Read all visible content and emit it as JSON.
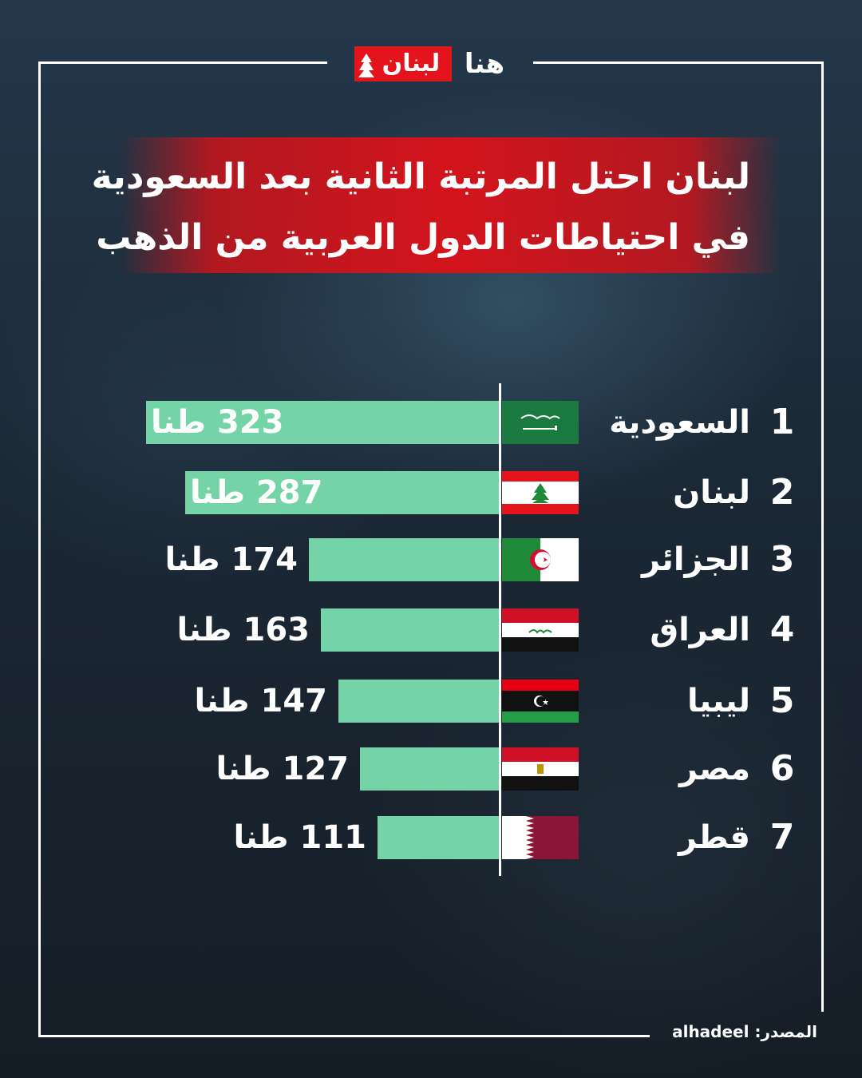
{
  "brand": {
    "logo_red_text": "لبنان",
    "logo_white_text": "هنا",
    "brand_red": "#e3141c"
  },
  "title": {
    "line1": "لبنان احتل المرتبة الثانية بعد السعودية",
    "line2": "في احتياطات الدول العربية من الذهب"
  },
  "colors": {
    "bar": "#74d4a8",
    "title_band": "#d3141c"
  },
  "chart_data": {
    "type": "bar",
    "orientation": "horizontal",
    "title": "لبنان احتل المرتبة الثانية بعد السعودية في احتياطات الدول العربية من الذهب",
    "categories": [
      "السعودية",
      "لبنان",
      "الجزائر",
      "العراق",
      "ليبيا",
      "مصر",
      "قطر"
    ],
    "ranks": [
      "1",
      "2",
      "3",
      "4",
      "5",
      "6",
      "7"
    ],
    "values": [
      323,
      287,
      174,
      163,
      147,
      127,
      111
    ],
    "value_labels": [
      "323 طنا",
      "287 طنا",
      "174 طنا",
      "163 طنا",
      "147 طنا",
      "127 طنا",
      "111 طنا"
    ],
    "unit": "طنا",
    "flags": [
      "saudi-arabia-flag",
      "lebanon-flag",
      "algeria-flag",
      "iraq-flag",
      "libya-flag",
      "egypt-flag",
      "qatar-flag"
    ],
    "xlim": [
      0,
      323
    ],
    "grid": false,
    "legend": "none"
  },
  "source": {
    "label": "المصدر:",
    "value": "alhadeel"
  }
}
